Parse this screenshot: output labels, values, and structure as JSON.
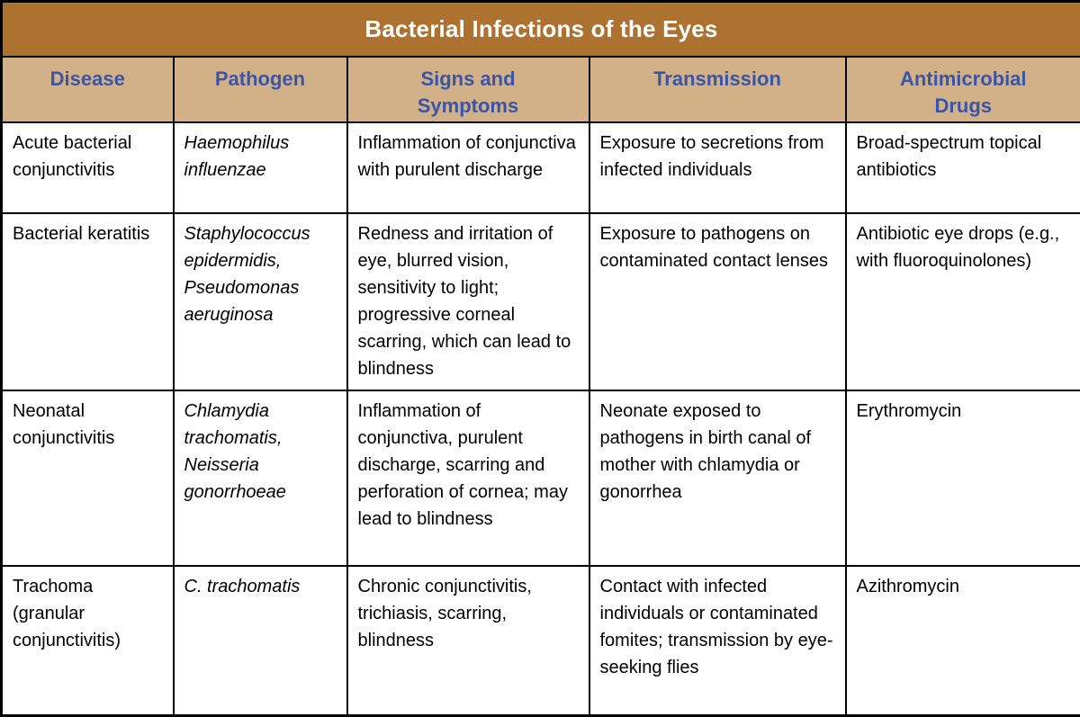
{
  "table": {
    "title": "Bacterial Infections of the Eyes",
    "columns": [
      "Disease",
      "Pathogen",
      "Signs and\nSymptoms",
      "Transmission",
      "Antimicrobial\nDrugs"
    ],
    "rows": [
      {
        "disease": "Acute bacterial conjunctivitis",
        "pathogen": "Haemophilus influenzae",
        "signs_and_symptoms": "Inflammation of conjunctiva with purulent discharge",
        "transmission": "Exposure to secretions from infected individuals",
        "antimicrobial_drugs": "Broad-spectrum topical antibiotics"
      },
      {
        "disease": "Bacterial keratitis",
        "pathogen": "Staphylococcus epidermidis, Pseudomonas aeruginosa",
        "signs_and_symptoms": "Redness and irritation of eye, blurred vision, sensitivity to light; progressive corneal scarring, which can lead to blindness",
        "transmission": "Exposure to pathogens on contaminated contact lenses",
        "antimicrobial_drugs": "Antibiotic eye drops (e.g., with fluoroquinolones)"
      },
      {
        "disease": "Neonatal conjunctivitis",
        "pathogen": "Chlamydia trachomatis, Neisseria gonorrhoeae",
        "signs_and_symptoms": "Inflammation of conjunctiva, purulent discharge, scarring and perforation of cornea; may lead to blindness",
        "transmission": "Neonate exposed to pathogens in birth canal of mother with chlamydia or gonorrhea",
        "antimicrobial_drugs": "Erythromycin"
      },
      {
        "disease": "Trachoma (granular conjunctivitis)",
        "pathogen": "C. trachomatis",
        "signs_and_symptoms": "Chronic conjunctivitis, trichiasis, scarring, blindness",
        "transmission": "Contact with infected individuals or contaminated fomites; transmission by eye-seeking flies",
        "antimicrobial_drugs": "Azithromycin"
      }
    ],
    "colors": {
      "title_background": "#ad7230",
      "title_text": "#ffffff",
      "header_background": "#d2b189",
      "header_text": "#3a55a8",
      "body_background": "#ffffff",
      "body_text": "#000000",
      "border": "#000000"
    }
  }
}
